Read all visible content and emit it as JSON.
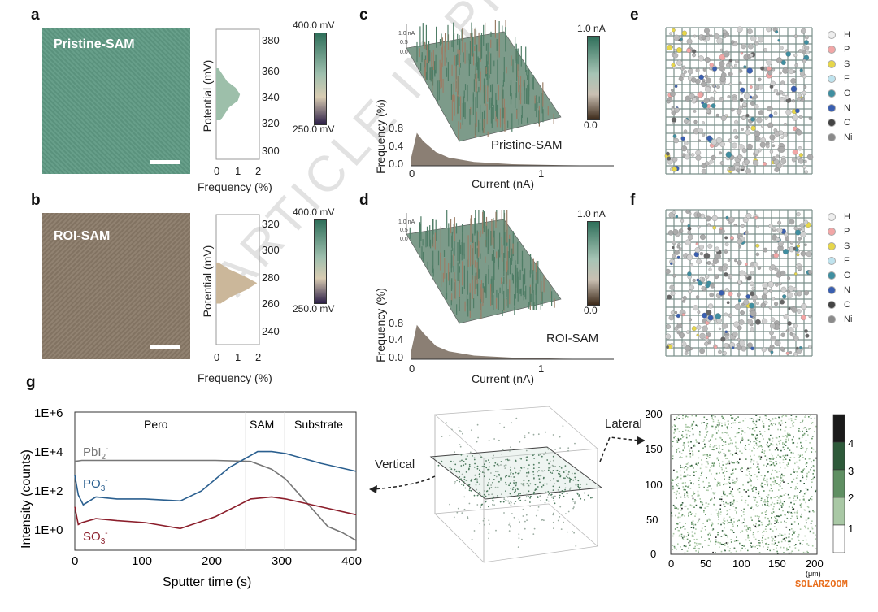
{
  "panel_labels": {
    "a": "a",
    "b": "b",
    "c": "c",
    "d": "d",
    "e": "e",
    "f": "f",
    "g": "g"
  },
  "kpfm_a": {
    "image_label": "Pristine-SAM",
    "image_color": "#5f9a84",
    "colorbar_max": "400.0 mV",
    "colorbar_min": "250.0 mV",
    "ylabel": "Potential (mV)",
    "xlabel": "Frequency (%)",
    "yticks": [
      "300",
      "320",
      "340",
      "360",
      "380"
    ],
    "xticks": [
      "0",
      "1",
      "2"
    ],
    "hist_color": "#9dbfaa"
  },
  "kpfm_b": {
    "image_label": "ROI-SAM",
    "image_color": "#8a7a68",
    "colorbar_max": "400.0 mV",
    "colorbar_min": "250.0 mV",
    "ylabel": "Potential (mV)",
    "xlabel": "Frequency (%)",
    "yticks": [
      "240",
      "260",
      "280",
      "300",
      "320"
    ],
    "xticks": [
      "0",
      "1",
      "2"
    ],
    "hist_color": "#cbb79a"
  },
  "afm_c": {
    "label": "Pristine-SAM",
    "colorbar_max": "1.0 nA",
    "colorbar_min": "0.0",
    "ylabel": "Frequency (%)",
    "xlabel": "Current (nA)",
    "yticks": [
      "0.0",
      "0.4",
      "0.8"
    ],
    "xticks": [
      "0",
      "1"
    ],
    "surface_axis_ticks": [
      "1.0 nA",
      "0.5",
      "0.0"
    ]
  },
  "afm_d": {
    "label": "ROI-SAM",
    "colorbar_max": "1.0 nA",
    "colorbar_min": "0.0",
    "ylabel": "Frequency (%)",
    "xlabel": "Current (nA)",
    "yticks": [
      "0.0",
      "0.4",
      "0.8"
    ],
    "xticks": [
      "0",
      "1"
    ],
    "surface_axis_ticks": [
      "1.0 nA",
      "0.5",
      "0.0"
    ]
  },
  "md_legend": [
    {
      "el": "H",
      "color": "#eeeeee"
    },
    {
      "el": "P",
      "color": "#f2a6a6"
    },
    {
      "el": "S",
      "color": "#e6d64a"
    },
    {
      "el": "F",
      "color": "#bfe3ee"
    },
    {
      "el": "O",
      "color": "#3f8ea0"
    },
    {
      "el": "N",
      "color": "#3a5fb0"
    },
    {
      "el": "C",
      "color": "#444444"
    },
    {
      "el": "Ni",
      "color": "#8a8a8a"
    }
  ],
  "tof": {
    "ylabel": "Intensity (counts)",
    "xlabel": "Sputter time (s)",
    "yticks": [
      "1E+0",
      "1E+2",
      "1E+4",
      "1E+6"
    ],
    "xticks": [
      "0",
      "100",
      "200",
      "300",
      "400"
    ],
    "regions": [
      "Pero",
      "SAM",
      "Substrate"
    ],
    "series_labels": {
      "pbi": "PbI",
      "po": "PO",
      "so": "SO"
    },
    "sub_pbi": "2",
    "sub_po": "3",
    "sub_so": "3",
    "sup": "-"
  },
  "tof3d": {
    "vertical": "Vertical",
    "lateral": "Lateral"
  },
  "lateral_map": {
    "xticks": [
      "0",
      "50",
      "100",
      "150",
      "200"
    ],
    "yticks": [
      "0",
      "50",
      "100",
      "150",
      "200"
    ],
    "unit": "(μm)",
    "colorbar_ticks": [
      "1",
      "2",
      "3",
      "4"
    ],
    "colorbar_colors": [
      "#ffffff",
      "#a9c8a5",
      "#5f8f62",
      "#2e5a3a",
      "#1a1a1a"
    ]
  },
  "watermark": "ARTICLE IN PRESS",
  "brand": "SOLARZOOM",
  "chart_data": [
    {
      "type": "bar",
      "title": "",
      "ylabel": "Potential (mV)",
      "xlabel": "Frequency (%)",
      "series_label": "Pristine-SAM",
      "y": [
        320,
        330,
        335,
        340,
        345,
        350,
        360
      ],
      "values": [
        0.2,
        0.6,
        1.0,
        1.1,
        0.9,
        0.5,
        0.1
      ],
      "xlim": [
        0,
        2
      ],
      "ylim": [
        290,
        390
      ]
    },
    {
      "type": "bar",
      "title": "",
      "ylabel": "Potential (mV)",
      "xlabel": "Frequency (%)",
      "series_label": "ROI-SAM",
      "y": [
        260,
        265,
        270,
        275,
        280,
        285,
        290
      ],
      "values": [
        0.2,
        0.7,
        1.4,
        1.9,
        1.3,
        0.6,
        0.1
      ],
      "xlim": [
        0,
        2
      ],
      "ylim": [
        230,
        325
      ]
    },
    {
      "type": "area",
      "xlabel": "Current (nA)",
      "ylabel": "Frequency (%)",
      "series_label": "Pristine-SAM",
      "x": [
        0,
        0.05,
        0.1,
        0.2,
        0.3,
        0.5,
        0.8,
        1.2,
        1.6
      ],
      "y": [
        0.1,
        0.6,
        0.45,
        0.25,
        0.15,
        0.07,
        0.03,
        0.01,
        0
      ],
      "xlim": [
        0,
        1.6
      ],
      "ylim": [
        0,
        0.8
      ]
    },
    {
      "type": "area",
      "xlabel": "Current (nA)",
      "ylabel": "Frequency (%)",
      "series_label": "ROI-SAM",
      "x": [
        0,
        0.05,
        0.1,
        0.2,
        0.3,
        0.5,
        0.8,
        1.2,
        1.6
      ],
      "y": [
        0.1,
        0.65,
        0.5,
        0.25,
        0.15,
        0.07,
        0.03,
        0.01,
        0
      ],
      "xlim": [
        0,
        1.6
      ],
      "ylim": [
        0,
        0.8
      ]
    },
    {
      "type": "line",
      "xlabel": "Sputter time (s)",
      "ylabel": "Intensity (counts)",
      "xlim": [
        0,
        400
      ],
      "ylim_log10": [
        -1,
        6
      ],
      "series": [
        {
          "name": "PbI2-",
          "color": "#777777",
          "x": [
            0,
            10,
            50,
            100,
            200,
            250,
            280,
            300,
            330,
            360,
            380,
            400
          ],
          "y_log10": [
            3.5,
            3.55,
            3.55,
            3.55,
            3.55,
            3.5,
            3.1,
            2.6,
            1.4,
            0.2,
            -0.1,
            -0.5
          ]
        },
        {
          "name": "PO3-",
          "color": "#2a5f8f",
          "x": [
            0,
            5,
            12,
            30,
            60,
            100,
            150,
            180,
            220,
            260,
            280,
            300,
            350,
            400
          ],
          "y_log10": [
            2.8,
            1.8,
            1.3,
            1.7,
            1.6,
            1.6,
            1.5,
            2.0,
            3.2,
            4.0,
            4.0,
            3.9,
            3.4,
            3.0
          ]
        },
        {
          "name": "SO3-",
          "color": "#8b1e2b",
          "x": [
            0,
            5,
            10,
            30,
            60,
            100,
            150,
            200,
            250,
            280,
            300,
            350,
            400
          ],
          "y_log10": [
            1.2,
            0.3,
            0.4,
            0.6,
            0.5,
            0.4,
            0.1,
            0.7,
            1.6,
            1.7,
            1.6,
            1.2,
            0.8
          ]
        }
      ]
    }
  ]
}
